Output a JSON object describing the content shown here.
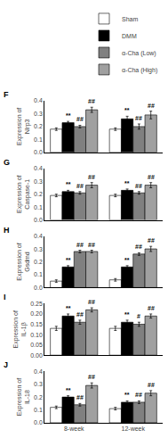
{
  "chart_data": [
    {
      "type": "bar",
      "title": "F",
      "ylabel": "Expression of Nlrp3",
      "categories": [
        "8-week",
        "12-week"
      ],
      "series": [
        {
          "name": "Sham",
          "color": "white",
          "values": [
            0.18,
            0.18
          ],
          "errors": [
            0.01,
            0.01
          ]
        },
        {
          "name": "DMM",
          "color": "black",
          "values": [
            0.23,
            0.26
          ],
          "errors": [
            0.01,
            0.02
          ],
          "annotations": [
            "**",
            "**"
          ]
        },
        {
          "name": "α-Cha (Low)",
          "color": "#808080",
          "values": [
            0.2,
            0.2
          ],
          "errors": [
            0.01,
            0.02
          ],
          "annotations": [
            "##",
            "##"
          ]
        },
        {
          "name": "α-Cha (High)",
          "color": "#a0a0a0",
          "values": [
            0.33,
            0.29
          ],
          "errors": [
            0.02,
            0.03
          ],
          "annotations": [
            "##",
            "##"
          ]
        }
      ],
      "ylim": [
        0,
        0.4
      ],
      "yticks": [
        {
          "value": 0,
          "label": "0.0"
        },
        0.1,
        0.2,
        0.3,
        0.4
      ],
      "grid": false,
      "legend": "upper right",
      "tick_labels": "y"
    },
    {
      "type": "bar",
      "title": "G",
      "ylabel": "Expression of Caspase-1",
      "categories": [
        "8-week",
        "12-week"
      ],
      "series": [
        {
          "color": "white",
          "values": [
            0.19,
            0.19
          ],
          "errors": [
            0.01,
            0.01
          ]
        },
        {
          "color": "black",
          "values": [
            0.22,
            0.23
          ],
          "errors": [
            0.01,
            0.01
          ],
          "annotations": [
            "**",
            "**"
          ]
        },
        {
          "color": "#808080",
          "values": [
            0.21,
            0.21
          ],
          "errors": [
            0.01,
            0.01
          ],
          "annotations": [
            "##",
            "##"
          ]
        },
        {
          "color": "#a0a0a0",
          "values": [
            0.27,
            0.27
          ],
          "errors": [
            0.02,
            0.02
          ],
          "annotations": [
            "##",
            "##"
          ]
        }
      ],
      "ylim": [
        0,
        0.4
      ],
      "yticks": [
        {
          "value": 0,
          "label": "0.0"
        },
        0.1,
        0.2,
        0.3,
        0.4
      ],
      "grid": false,
      "tick_labels": "y"
    },
    {
      "type": "bar",
      "title": "H",
      "ylabel": "Expression of Gsdmd",
      "categories": [
        "8-week",
        "12-week"
      ],
      "series": [
        {
          "color": "white",
          "values": [
            0.05,
            0.06
          ],
          "errors": [
            0.01,
            0.01
          ]
        },
        {
          "color": "black",
          "values": [
            0.16,
            0.16
          ],
          "errors": [
            0.01,
            0.01
          ],
          "annotations": [
            "**",
            "**"
          ]
        },
        {
          "color": "#808080",
          "values": [
            0.28,
            0.26
          ],
          "errors": [
            0.01,
            0.01
          ],
          "annotations": [
            "##",
            "##"
          ]
        },
        {
          "color": "#a0a0a0",
          "values": [
            0.28,
            0.3
          ],
          "errors": [
            0.01,
            0.02
          ],
          "annotations": [
            "##",
            "##"
          ]
        }
      ],
      "ylim": [
        0,
        0.4
      ],
      "yticks": [
        {
          "value": 0,
          "label": "0.0"
        },
        0.1,
        0.2,
        0.3,
        0.4
      ],
      "grid": false,
      "tick_labels": "y"
    },
    {
      "type": "bar",
      "title": "I",
      "ylabel": "Expression of IL-1β",
      "categories": [
        "8-week",
        "12-week"
      ],
      "series": [
        {
          "color": "white",
          "values": [
            0.13,
            0.13
          ],
          "errors": [
            0.01,
            0.01
          ]
        },
        {
          "color": "black",
          "values": [
            0.19,
            0.16
          ],
          "errors": [
            0.01,
            0.01
          ],
          "annotations": [
            "**",
            "**"
          ]
        },
        {
          "color": "#808080",
          "values": [
            0.16,
            0.15
          ],
          "errors": [
            0.01,
            0.01
          ],
          "annotations": [
            "##",
            "#"
          ]
        },
        {
          "color": "#a0a0a0",
          "values": [
            0.22,
            0.19
          ],
          "errors": [
            0.01,
            0.01
          ],
          "annotations": [
            "##",
            "##"
          ]
        }
      ],
      "ylim": [
        0,
        0.25
      ],
      "yticks": [
        {
          "value": 0,
          "label": "0.00"
        },
        0.05,
        {
          "value": 0.1,
          "label": "0.10"
        },
        0.15,
        {
          "value": 0.2,
          "label": "0.20"
        },
        0.25
      ],
      "grid": false,
      "tick_labels": "y"
    },
    {
      "type": "bar",
      "title": "J",
      "ylabel": "Expression of IL-18",
      "categories": [
        "8-week",
        "12-week"
      ],
      "series": [
        {
          "color": "white",
          "values": [
            0.12,
            0.11
          ],
          "errors": [
            0.01,
            0.01
          ]
        },
        {
          "color": "black",
          "values": [
            0.2,
            0.16
          ],
          "errors": [
            0.01,
            0.01
          ],
          "annotations": [
            "**",
            "**"
          ]
        },
        {
          "color": "#808080",
          "values": [
            0.14,
            0.16
          ],
          "errors": [
            0.01,
            0.01
          ],
          "annotations": [
            "##",
            "##"
          ]
        },
        {
          "color": "#a0a0a0",
          "values": [
            0.29,
            0.23
          ],
          "errors": [
            0.02,
            0.02
          ],
          "annotations": [
            "##",
            "##"
          ]
        }
      ],
      "ylim": [
        0,
        0.4
      ],
      "yticks": [
        {
          "value": 0,
          "label": "0.0"
        },
        0.1,
        0.2,
        0.3,
        0.4
      ],
      "grid": false
    }
  ]
}
